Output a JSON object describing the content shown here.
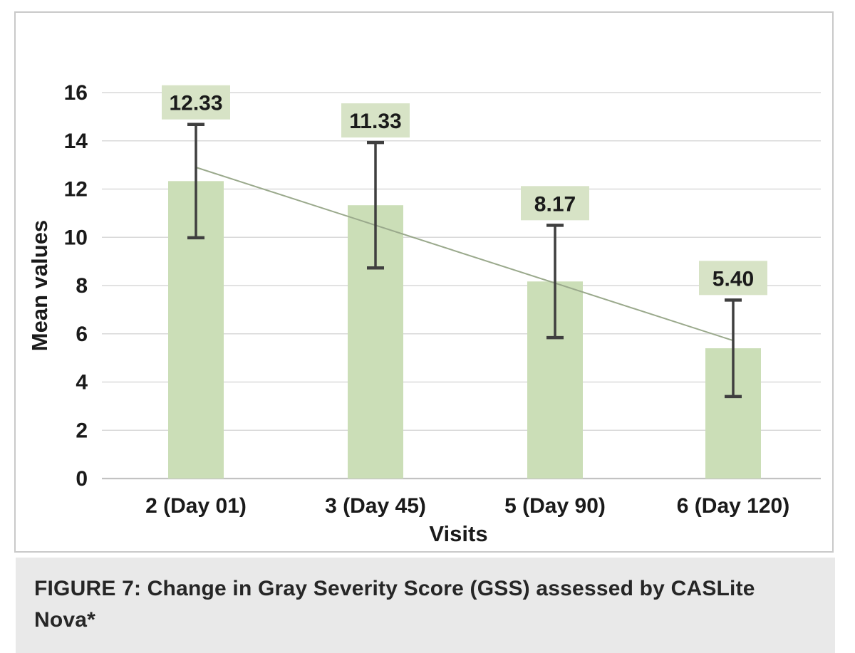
{
  "figure_caption": {
    "line1": "FIGURE 7: Change in Gray Severity Score (GSS) assessed by CASLite",
    "line2": "Nova*"
  },
  "chart_data": {
    "type": "bar",
    "title": "",
    "xlabel": "Visits",
    "ylabel": "Mean values",
    "categories": [
      "2 (Day 01)",
      "3 (Day 45)",
      "5 (Day 90)",
      "6 (Day 120)"
    ],
    "values": [
      12.33,
      11.33,
      8.17,
      5.4
    ],
    "data_labels": [
      "12.33",
      "11.33",
      "8.17",
      "5.40"
    ],
    "error_bars": [
      2.35,
      2.6,
      2.33,
      2.0
    ],
    "trendline": {
      "type": "linear",
      "start_value": 12.9,
      "end_value": 5.72
    },
    "ylim": [
      0,
      16
    ],
    "ytick_step": 2,
    "yticks": [
      "0",
      "2",
      "4",
      "6",
      "8",
      "10",
      "12",
      "14",
      "16"
    ],
    "grid": true,
    "legend": "none",
    "colors": {
      "bar_fill": "#cbdeb7",
      "label_box_fill": "#d7e3c6",
      "error_bar": "#3f3f3f",
      "trendline": "#9aa98c",
      "gridline": "#d9d9d9",
      "axis_line": "#c2c2c2",
      "text": "#1a1a1a"
    }
  }
}
